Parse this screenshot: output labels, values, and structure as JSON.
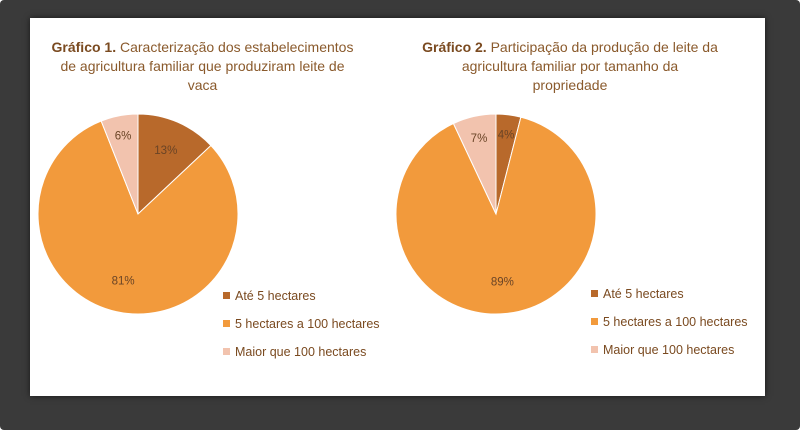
{
  "colors": {
    "dark": "#b8692b",
    "orange": "#f29a3c",
    "light": "#f2c3ae"
  },
  "chart_data": [
    {
      "type": "pie",
      "title_bold": "Gráfico 1.",
      "title_lines": [
        "Caracterização dos estabelecimentos",
        "de agricultura familiar que produziram leite de",
        "vaca"
      ],
      "categories": [
        "Até 5 hectares",
        "5 hectares a 100 hectares",
        "Maior que 100 hectares"
      ],
      "values": [
        13,
        81,
        6
      ],
      "labels": [
        "13%",
        "81%",
        "6%"
      ]
    },
    {
      "type": "pie",
      "title_bold": "Gráfico 2.",
      "title_lines": [
        "Participação da produção de leite da",
        "agricultura familiar por tamanho da",
        "propriedade"
      ],
      "categories": [
        "Até 5 hectares",
        "5 hectares a 100 hectares",
        "Maior que 100 hectares"
      ],
      "values": [
        4,
        89,
        7
      ],
      "labels": [
        "4%",
        "89%",
        "7%"
      ]
    }
  ]
}
